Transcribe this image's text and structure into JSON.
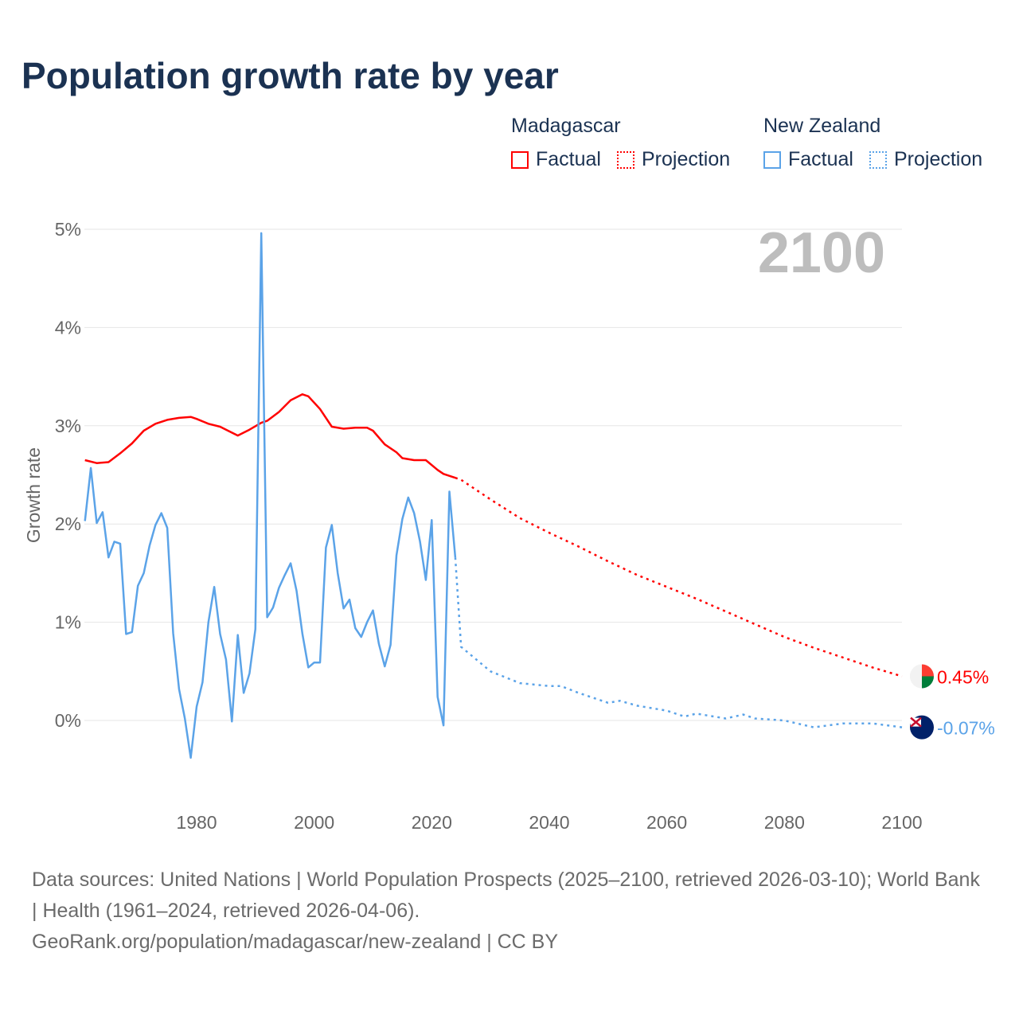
{
  "title": "Population growth rate by year",
  "legend": {
    "groups": [
      {
        "name": "Madagascar",
        "factual": "Factual",
        "projection": "Projection",
        "color": "#ff0000"
      },
      {
        "name": "New Zealand",
        "factual": "Factual",
        "projection": "Projection",
        "color": "#5ba3e8"
      }
    ]
  },
  "footer": {
    "sources": "Data sources: United Nations | World Population Prospects (2025–2100, retrieved 2026-03-10); World Bank | Health (1961–2024, retrieved 2026-04-06).",
    "link": "GeoRank.org/population/madagascar/new-zealand | CC BY"
  },
  "chart_data": {
    "type": "line",
    "title": "Population growth rate by year",
    "ylabel": "Growth rate",
    "xlabel": "",
    "xlim": [
      1961,
      2100
    ],
    "ylim": [
      -0.8,
      5.0
    ],
    "x_ticks": [
      "1980",
      "2000",
      "2020",
      "2040",
      "2060",
      "2080",
      "2100"
    ],
    "y_ticks": [
      "0%",
      "1%",
      "2%",
      "3%",
      "4%",
      "5%"
    ],
    "year_label": "2100",
    "grid": true,
    "series": [
      {
        "name": "Madagascar",
        "color": "#ff0000",
        "end_label": "0.45%",
        "factual": {
          "x": [
            1961,
            1963,
            1965,
            1967,
            1969,
            1971,
            1973,
            1975,
            1977,
            1979,
            1980,
            1982,
            1984,
            1985,
            1987,
            1989,
            1991,
            1992,
            1994,
            1996,
            1998,
            1999,
            2001,
            2003,
            2005,
            2007,
            2009,
            2010,
            2012,
            2014,
            2015,
            2017,
            2019,
            2021,
            2022,
            2024
          ],
          "y": [
            2.65,
            2.62,
            2.63,
            2.72,
            2.82,
            2.95,
            3.02,
            3.06,
            3.08,
            3.09,
            3.07,
            3.02,
            2.99,
            2.96,
            2.9,
            2.96,
            3.03,
            3.05,
            3.14,
            3.26,
            3.32,
            3.3,
            3.17,
            2.99,
            2.97,
            2.98,
            2.98,
            2.95,
            2.81,
            2.73,
            2.67,
            2.65,
            2.65,
            2.55,
            2.51,
            2.47
          ]
        },
        "projection": {
          "x": [
            2024,
            2025,
            2030,
            2035,
            2040,
            2045,
            2050,
            2055,
            2060,
            2065,
            2070,
            2075,
            2080,
            2085,
            2090,
            2095,
            2100
          ],
          "y": [
            2.47,
            2.45,
            2.25,
            2.06,
            1.91,
            1.77,
            1.62,
            1.48,
            1.36,
            1.24,
            1.11,
            0.98,
            0.85,
            0.74,
            0.64,
            0.54,
            0.45
          ]
        }
      },
      {
        "name": "New Zealand",
        "color": "#5ba3e8",
        "end_label": "-0.07%",
        "factual": {
          "x": [
            1961,
            1962,
            1963,
            1964,
            1965,
            1966,
            1967,
            1968,
            1969,
            1970,
            1971,
            1972,
            1973,
            1974,
            1975,
            1976,
            1977,
            1978,
            1979,
            1980,
            1981,
            1982,
            1983,
            1984,
            1985,
            1986,
            1987,
            1988,
            1989,
            1990,
            1991,
            1992,
            1993,
            1994,
            1995,
            1996,
            1997,
            1998,
            1999,
            2000,
            2001,
            2002,
            2003,
            2004,
            2005,
            2006,
            2007,
            2008,
            2009,
            2010,
            2011,
            2012,
            2013,
            2014,
            2015,
            2016,
            2017,
            2018,
            2019,
            2020,
            2021,
            2022,
            2023,
            2024
          ],
          "y": [
            2.03,
            2.57,
            2.01,
            2.12,
            1.66,
            1.82,
            1.8,
            0.88,
            0.9,
            1.37,
            1.5,
            1.78,
            1.99,
            2.11,
            1.96,
            0.89,
            0.32,
            0.02,
            -0.38,
            0.14,
            0.39,
            1.0,
            1.36,
            0.88,
            0.62,
            -0.01,
            0.87,
            0.28,
            0.48,
            0.93,
            4.96,
            1.05,
            1.15,
            1.35,
            1.48,
            1.6,
            1.32,
            0.88,
            0.54,
            0.59,
            0.59,
            1.76,
            1.99,
            1.5,
            1.14,
            1.23,
            0.94,
            0.85,
            1.0,
            1.12,
            0.78,
            0.55,
            0.77,
            1.68,
            2.05,
            2.27,
            2.11,
            1.82,
            1.43,
            2.04,
            0.24,
            -0.05,
            2.33,
            1.66
          ]
        },
        "projection": {
          "x": [
            2024,
            2025,
            2030,
            2035,
            2040,
            2042,
            2045,
            2050,
            2052,
            2055,
            2060,
            2063,
            2065,
            2070,
            2073,
            2075,
            2080,
            2085,
            2090,
            2095,
            2100
          ],
          "y": [
            1.66,
            0.75,
            0.5,
            0.38,
            0.35,
            0.35,
            0.28,
            0.18,
            0.2,
            0.15,
            0.1,
            0.04,
            0.07,
            0.02,
            0.06,
            0.02,
            0.0,
            -0.07,
            -0.03,
            -0.03,
            -0.07
          ]
        }
      }
    ]
  }
}
